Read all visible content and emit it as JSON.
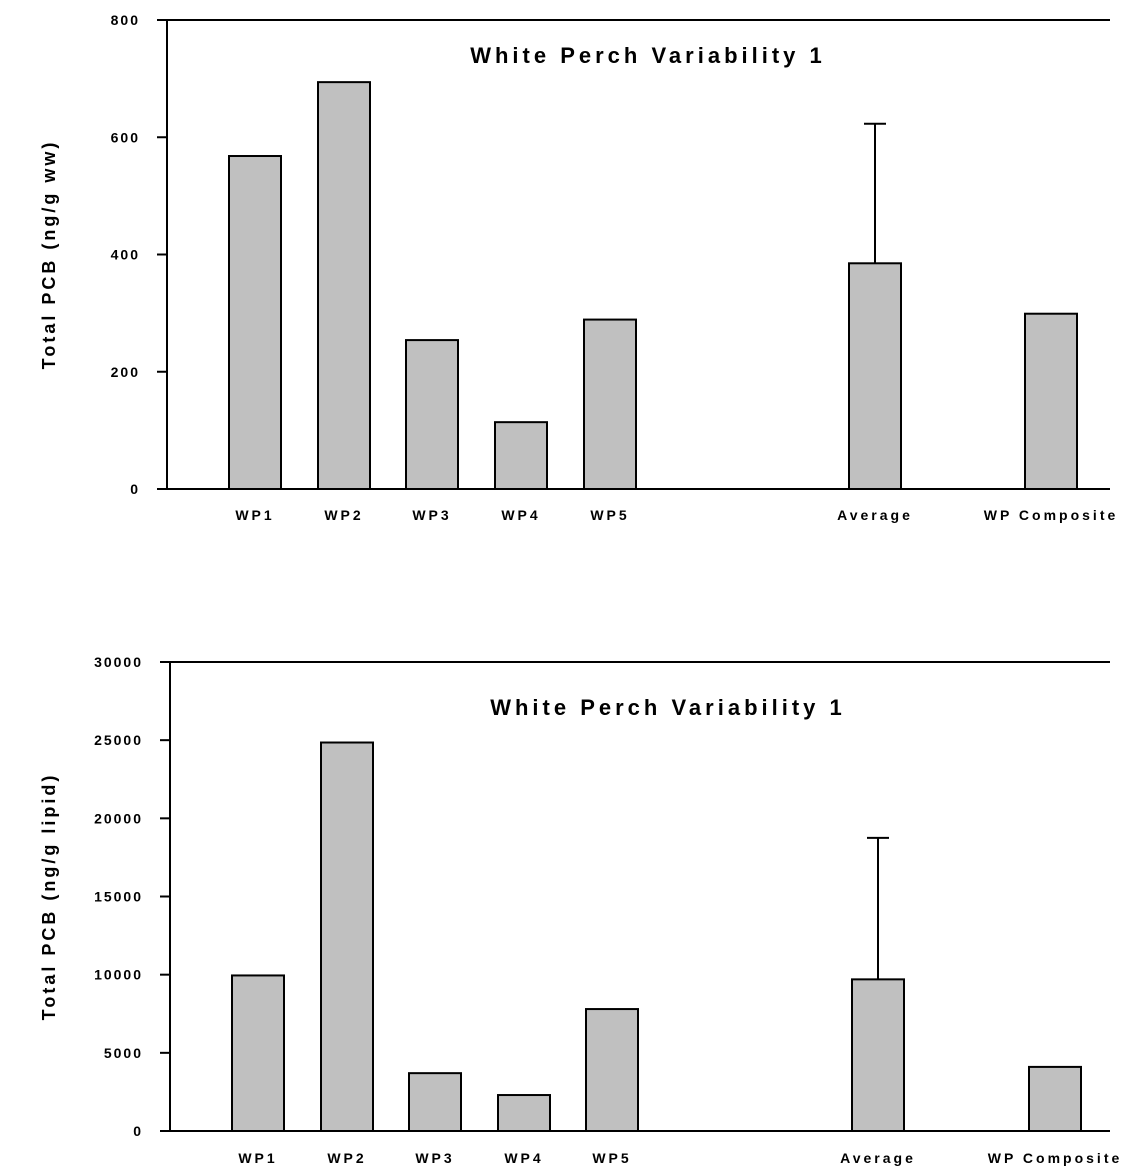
{
  "chart_data": [
    {
      "type": "bar",
      "title": "White Perch Variability 1",
      "xlabel": "",
      "ylabel": "Total PCB (ng/g ww)",
      "ylim": [
        0,
        800
      ],
      "yticks": [
        0,
        200,
        400,
        600,
        800
      ],
      "categories": [
        "WP1",
        "WP2",
        "WP3",
        "WP4",
        "WP5",
        "Average",
        "WP Composite"
      ],
      "values": [
        568,
        694,
        254,
        114,
        289,
        385,
        299
      ],
      "error_bars": [
        null,
        null,
        null,
        null,
        null,
        238,
        null
      ],
      "bar_color": "#c0c0c0",
      "grid": false,
      "legend": "none"
    },
    {
      "type": "bar",
      "title": "White Perch Variability 1",
      "xlabel": "",
      "ylabel": "Total PCB (ng/g lipid)",
      "ylim": [
        0,
        30000
      ],
      "yticks": [
        0,
        5000,
        10000,
        15000,
        20000,
        25000,
        30000
      ],
      "categories": [
        "WP1",
        "WP2",
        "WP3",
        "WP4",
        "WP5",
        "Average",
        "WP Composite"
      ],
      "values": [
        9950,
        24850,
        3700,
        2300,
        7800,
        9700,
        4100
      ],
      "error_bars": [
        null,
        null,
        null,
        null,
        null,
        9050,
        null
      ],
      "bar_color": "#c0c0c0",
      "grid": false,
      "legend": "none"
    }
  ]
}
